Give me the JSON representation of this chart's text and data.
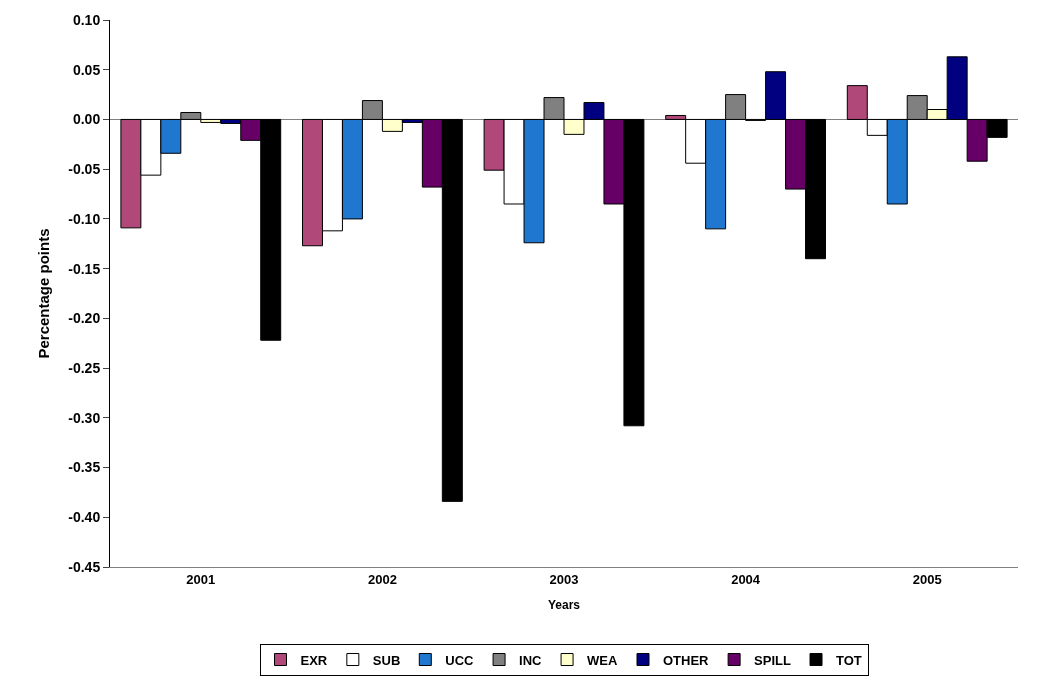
{
  "chart_data": {
    "type": "bar",
    "xlabel": "Years",
    "ylabel": "Percentage points",
    "categories": [
      "2001",
      "2002",
      "2003",
      "2004",
      "2005"
    ],
    "series": [
      {
        "name": "EXR",
        "color": "#b0487a",
        "values": [
          -0.109,
          -0.127,
          -0.051,
          0.004,
          0.034
        ]
      },
      {
        "name": "SUB",
        "color": "#ffffff",
        "values": [
          -0.056,
          -0.112,
          -0.085,
          -0.044,
          -0.016
        ]
      },
      {
        "name": "UCC",
        "color": "#1f77d0",
        "values": [
          -0.034,
          -0.1,
          -0.124,
          -0.11,
          -0.085
        ]
      },
      {
        "name": "INC",
        "color": "#808080",
        "values": [
          0.007,
          0.019,
          0.022,
          0.025,
          0.024
        ]
      },
      {
        "name": "WEA",
        "color": "#ffffcc",
        "values": [
          -0.003,
          -0.012,
          -0.015,
          -0.001,
          0.01
        ]
      },
      {
        "name": "OTHER",
        "color": "#000080",
        "values": [
          -0.004,
          -0.003,
          0.017,
          0.048,
          0.063
        ]
      },
      {
        "name": "SPILL",
        "color": "#660066",
        "values": [
          -0.021,
          -0.068,
          -0.085,
          -0.07,
          -0.042
        ]
      },
      {
        "name": "TOT",
        "color": "#000000",
        "values": [
          -0.222,
          -0.384,
          -0.308,
          -0.14,
          -0.018
        ]
      }
    ],
    "ylim": [
      -0.45,
      0.1
    ],
    "yticks": [
      {
        "value": -0.45,
        "label": "-0.45"
      },
      {
        "value": -0.4,
        "label": "-0.40"
      },
      {
        "value": -0.35,
        "label": "-0.35"
      },
      {
        "value": -0.3,
        "label": "-0.30"
      },
      {
        "value": -0.25,
        "label": "-0.25"
      },
      {
        "value": -0.2,
        "label": "-0.20"
      },
      {
        "value": -0.15,
        "label": "-0.15"
      },
      {
        "value": -0.1,
        "label": "-0.10"
      },
      {
        "value": -0.05,
        "label": "-0.05"
      },
      {
        "value": 0,
        "label": "0.00"
      },
      {
        "value": 0.05,
        "label": "0.05"
      },
      {
        "value": 0.1,
        "label": "0.10"
      }
    ],
    "legend": "bottom"
  }
}
